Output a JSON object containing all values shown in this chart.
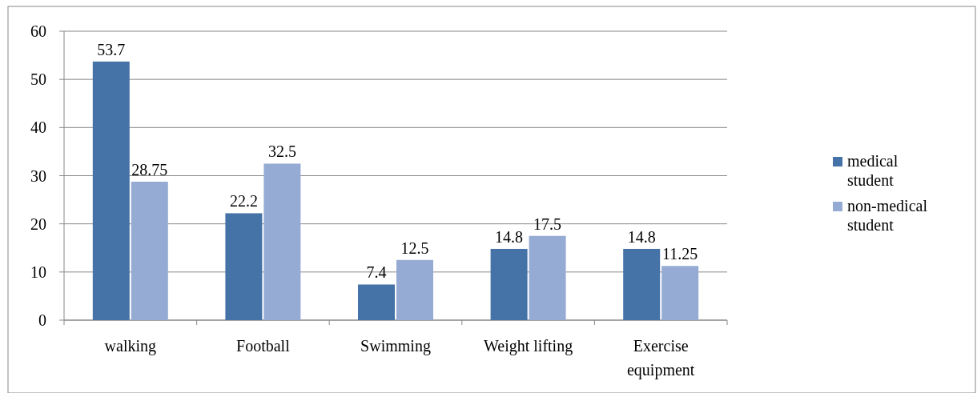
{
  "chart_data": {
    "type": "bar",
    "categories": [
      "walking",
      "Football",
      "Swimming",
      "Weight lifting",
      "Exercise equipment"
    ],
    "series": [
      {
        "name": "medical student",
        "color": "#4673a7",
        "values": [
          53.7,
          22.2,
          7.4,
          14.8,
          14.8
        ]
      },
      {
        "name": "non-medical student",
        "color": "#95abd3",
        "values": [
          28.75,
          32.5,
          12.5,
          17.5,
          11.25
        ]
      }
    ],
    "ylim": [
      0,
      60
    ],
    "yticks": [
      0,
      10,
      20,
      30,
      40,
      50,
      60
    ],
    "grid": "y",
    "legend": "right",
    "data_labels": true
  }
}
